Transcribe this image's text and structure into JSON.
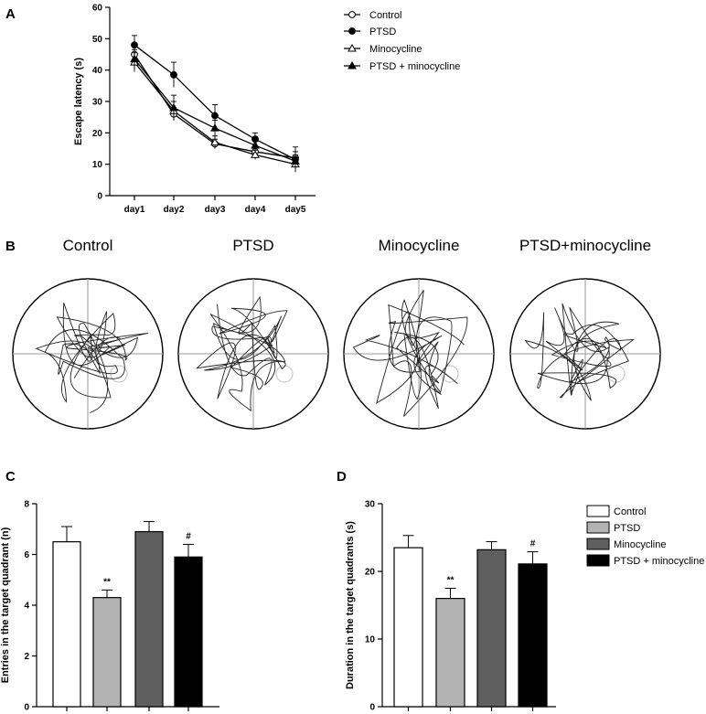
{
  "panels": {
    "a": "A",
    "b": "B",
    "c": "C",
    "d": "D"
  },
  "chart_data": [
    {
      "type": "line",
      "title": "",
      "xlabel": "",
      "ylabel": "Escape latency (s)",
      "categories": [
        "day1",
        "day2",
        "day3",
        "day4",
        "day5"
      ],
      "ylim": [
        0,
        60
      ],
      "yticks": [
        0,
        10,
        20,
        30,
        40,
        50,
        60
      ],
      "series": [
        {
          "name": "Control",
          "marker": "open-circle",
          "values": [
            45,
            26,
            16.5,
            14,
            12
          ],
          "errors": [
            3,
            2,
            1.5,
            1.5,
            2
          ]
        },
        {
          "name": "PTSD",
          "marker": "filled-circle",
          "values": [
            48,
            38.5,
            25.5,
            18,
            11.5
          ],
          "errors": [
            3,
            4,
            3.5,
            2,
            4
          ]
        },
        {
          "name": "Minocycline",
          "marker": "open-triangle",
          "values": [
            42.5,
            27,
            17,
            13,
            10
          ],
          "errors": [
            3,
            3,
            2,
            1.5,
            1.5
          ]
        },
        {
          "name": "PTSD + minocycline",
          "marker": "filled-triangle",
          "values": [
            43.5,
            28,
            21.5,
            16,
            11
          ],
          "errors": [
            3,
            4,
            2.5,
            2,
            2
          ]
        }
      ]
    },
    {
      "type": "bar",
      "title": "",
      "xlabel": "",
      "ylabel": "Entries in the target quadrant (n)",
      "categories": [
        "Control",
        "PTSD",
        "Minocycline",
        "PTSD + minocycline"
      ],
      "values": [
        6.5,
        4.3,
        6.9,
        5.9
      ],
      "errors": [
        0.6,
        0.3,
        0.4,
        0.5
      ],
      "ylim": [
        0,
        8
      ],
      "yticks": [
        0,
        2,
        4,
        6,
        8
      ],
      "annotations": [
        "",
        "**",
        "",
        "#"
      ]
    },
    {
      "type": "bar",
      "title": "",
      "xlabel": "",
      "ylabel": "Duration in the target quadrants (s)",
      "categories": [
        "Control",
        "PTSD",
        "Minocycline",
        "PTSD + minocycline"
      ],
      "values": [
        23.5,
        16,
        23.2,
        21.1
      ],
      "errors": [
        1.8,
        1.5,
        1.2,
        1.8
      ],
      "ylim": [
        0,
        30
      ],
      "yticks": [
        0,
        10,
        20,
        30
      ],
      "annotations": [
        "",
        "**",
        "",
        "#"
      ],
      "legend": [
        "Control",
        "PTSD",
        "Minocycline",
        "PTSD + minocycline"
      ]
    }
  ],
  "mazes": [
    "Control",
    "PTSD",
    "Minocycline",
    "PTSD+minocycline"
  ],
  "colors": {
    "control": "#ffffff",
    "ptsd": "#b3b3b3",
    "minocycline": "#5f5f5f",
    "ptsd_minocycline": "#000000",
    "axis": "#000000",
    "maze_line": "#9a9a9a",
    "target": "#c8c8c8"
  }
}
